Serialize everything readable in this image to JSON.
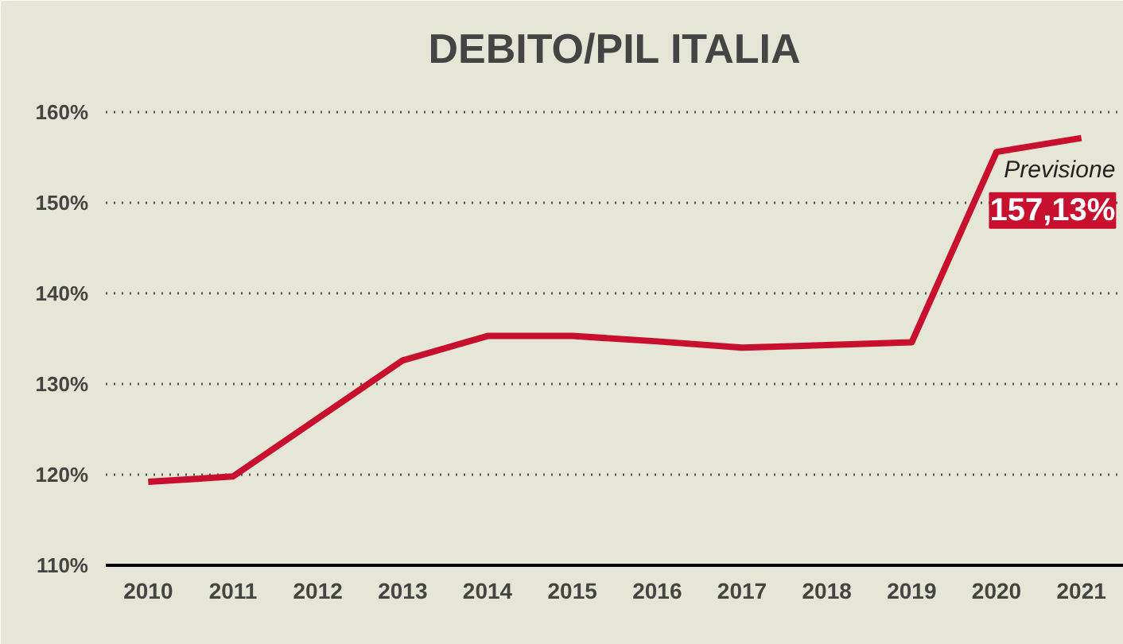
{
  "chart_data": {
    "type": "line",
    "title": "DEBITO/PIL ITALIA",
    "categories": [
      "2010",
      "2011",
      "2012",
      "2013",
      "2014",
      "2015",
      "2016",
      "2017",
      "2018",
      "2019",
      "2020",
      "2021"
    ],
    "values": [
      119.2,
      119.8,
      126.2,
      132.6,
      135.3,
      135.3,
      134.7,
      134.0,
      134.3,
      134.6,
      155.6,
      157.13
    ],
    "value_labels": [
      null,
      null,
      null,
      null,
      null,
      null,
      null,
      null,
      null,
      null,
      null,
      "157,13%"
    ],
    "annotations": [
      "Previsione"
    ],
    "color": "#c8102e",
    "ylim": [
      110,
      163.5
    ],
    "yticks": [
      {
        "value": 110,
        "label": "110%"
      },
      {
        "value": 120,
        "label": "120%"
      },
      {
        "value": 130,
        "label": "130%"
      },
      {
        "value": 140,
        "label": "140%"
      },
      {
        "value": 150,
        "label": "150%"
      },
      {
        "value": 160,
        "label": "160%"
      }
    ],
    "grid": "y",
    "marker": "none",
    "line_style": "solid"
  }
}
